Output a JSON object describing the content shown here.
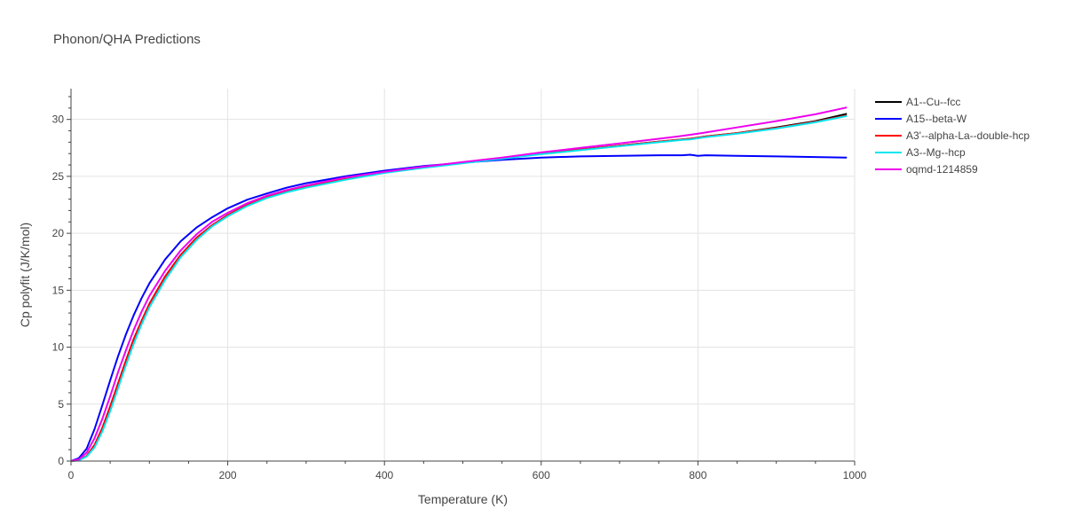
{
  "chart_data": {
    "type": "line",
    "title": "Phonon/QHA Predictions",
    "xlabel": "Temperature (K)",
    "ylabel": "Cp polyfit (J/K/mol)",
    "xlim": [
      0,
      1000
    ],
    "ylim": [
      0,
      32.7
    ],
    "xticks": [
      0,
      200,
      400,
      600,
      800,
      1000
    ],
    "yticks": [
      0,
      5,
      10,
      15,
      20,
      25,
      30
    ],
    "grid": true,
    "legend_position": "top-right",
    "x": [
      0,
      10,
      20,
      30,
      40,
      50,
      60,
      70,
      80,
      90,
      100,
      120,
      140,
      160,
      180,
      200,
      225,
      250,
      275,
      300,
      350,
      400,
      450,
      500,
      550,
      600,
      650,
      700,
      750,
      780,
      790,
      800,
      810,
      850,
      900,
      950,
      990
    ],
    "series": [
      {
        "name": "A1--Cu--fcc",
        "color": "#000000",
        "values": [
          0,
          0.08,
          0.45,
          1.4,
          2.9,
          4.8,
          6.8,
          8.8,
          10.7,
          12.3,
          13.8,
          16.2,
          18.1,
          19.6,
          20.7,
          21.6,
          22.5,
          23.2,
          23.7,
          24.1,
          24.8,
          25.35,
          25.8,
          26.2,
          26.6,
          27.0,
          27.35,
          27.7,
          28.05,
          28.25,
          28.3,
          28.4,
          28.5,
          28.8,
          29.3,
          29.85,
          30.5
        ]
      },
      {
        "name": "A15--beta-W",
        "color": "#0000ff",
        "values": [
          0,
          0.25,
          1.1,
          2.8,
          4.9,
          7.1,
          9.2,
          11.1,
          12.8,
          14.3,
          15.6,
          17.7,
          19.3,
          20.5,
          21.4,
          22.2,
          22.95,
          23.5,
          24.0,
          24.4,
          25.0,
          25.5,
          25.9,
          26.2,
          26.45,
          26.65,
          26.75,
          26.8,
          26.85,
          26.85,
          26.9,
          26.8,
          26.85,
          26.8,
          26.75,
          26.7,
          26.65
        ]
      },
      {
        "name": "A3'--alpha-La--double-hcp",
        "color": "#ff0000",
        "values": [
          0,
          0.08,
          0.45,
          1.4,
          2.9,
          4.8,
          6.8,
          8.8,
          10.7,
          12.3,
          13.8,
          16.2,
          18.1,
          19.6,
          20.7,
          21.6,
          22.5,
          23.2,
          23.7,
          24.1,
          24.8,
          25.35,
          25.8,
          26.2,
          26.6,
          27.0,
          27.35,
          27.7,
          28.05,
          28.25,
          28.3,
          28.4,
          28.5,
          28.8,
          29.25,
          29.8,
          30.35
        ]
      },
      {
        "name": "A3--Mg--hcp",
        "color": "#00e5ee",
        "values": [
          0,
          0.06,
          0.4,
          1.2,
          2.6,
          4.4,
          6.4,
          8.4,
          10.3,
          12.0,
          13.5,
          15.9,
          17.9,
          19.4,
          20.6,
          21.5,
          22.4,
          23.1,
          23.6,
          24.0,
          24.7,
          25.3,
          25.75,
          26.15,
          26.55,
          26.95,
          27.3,
          27.65,
          28.0,
          28.2,
          28.25,
          28.35,
          28.45,
          28.75,
          29.2,
          29.75,
          30.3
        ]
      },
      {
        "name": "oqmd-1214859",
        "color": "#ee00ee",
        "values": [
          0,
          0.15,
          0.75,
          2.0,
          3.7,
          5.7,
          7.8,
          9.7,
          11.5,
          13.1,
          14.5,
          16.7,
          18.5,
          19.9,
          21.0,
          21.8,
          22.65,
          23.3,
          23.8,
          24.2,
          24.9,
          25.4,
          25.85,
          26.25,
          26.65,
          27.1,
          27.5,
          27.9,
          28.3,
          28.55,
          28.65,
          28.75,
          28.85,
          29.3,
          29.85,
          30.45,
          31.05
        ]
      }
    ]
  }
}
